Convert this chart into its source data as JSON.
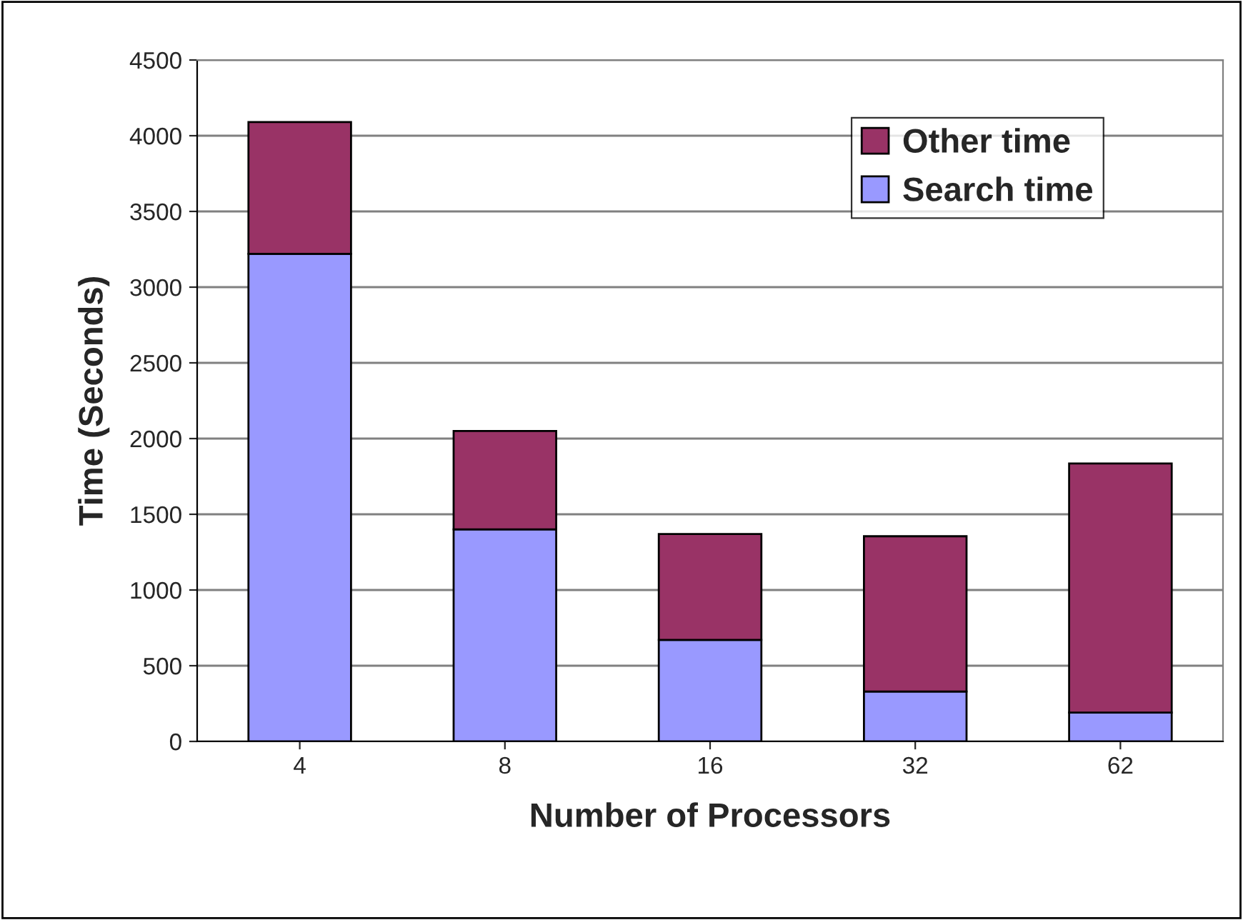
{
  "chart_data": {
    "type": "bar",
    "stacked": true,
    "xlabel": "Number of Processors",
    "ylabel": "Time (Seconds)",
    "categories": [
      "4",
      "8",
      "16",
      "32",
      "62"
    ],
    "series": [
      {
        "name": "Search time",
        "color": "#9999ff",
        "values": [
          3220,
          1400,
          670,
          330,
          190
        ]
      },
      {
        "name": "Other time",
        "color": "#993366",
        "values": [
          870,
          650,
          700,
          1025,
          1645
        ]
      }
    ],
    "ylim": [
      0,
      4500
    ],
    "yticks": [
      0,
      500,
      1000,
      1500,
      2000,
      2500,
      3000,
      3500,
      4000,
      4500
    ],
    "grid": "y",
    "legend": "top right"
  }
}
